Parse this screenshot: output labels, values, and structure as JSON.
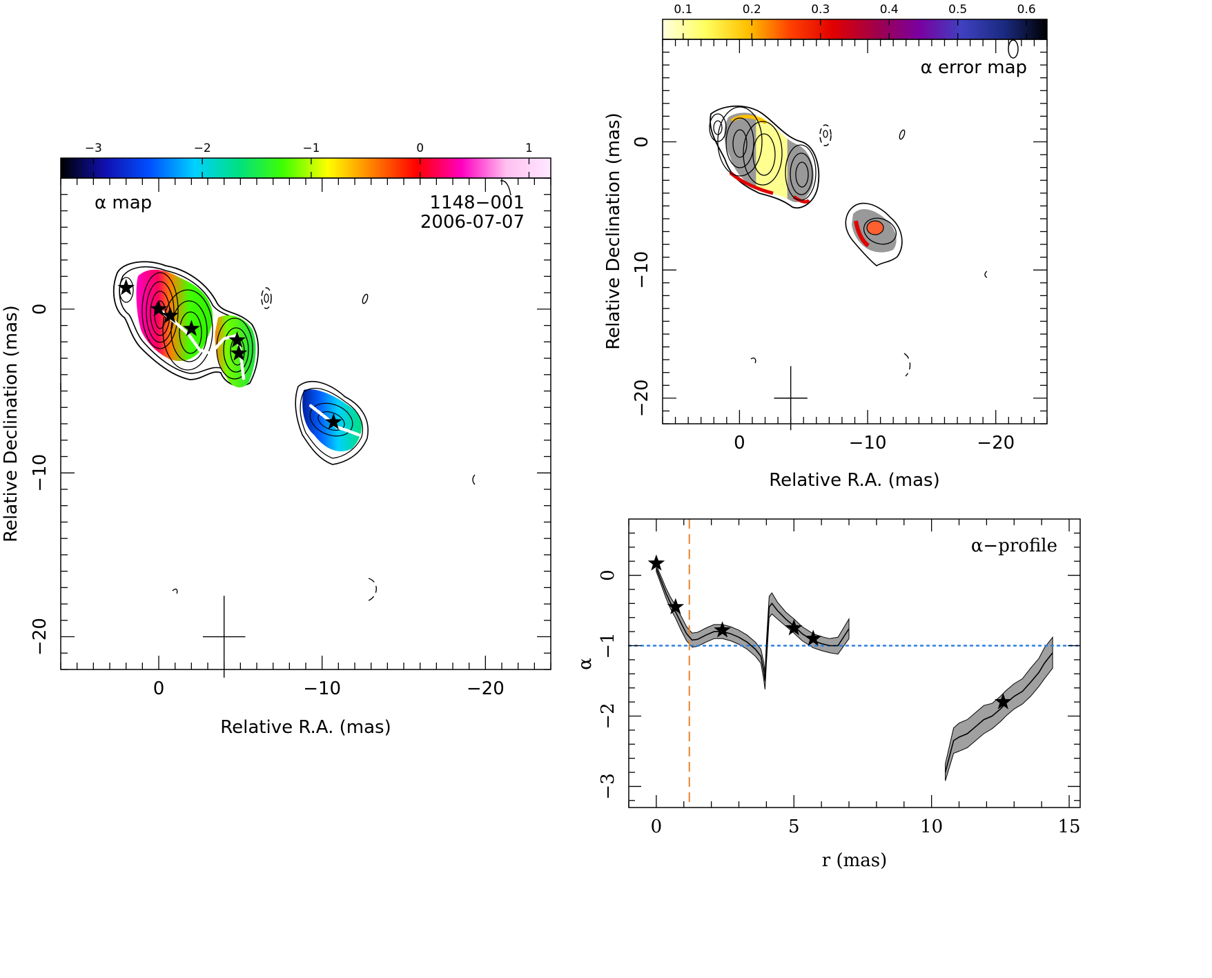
{
  "chart_data": [
    {
      "type": "heatmap",
      "title": "α map",
      "source": "1148−001",
      "epoch": "2006-07-07",
      "xlabel": "Relative R.A. (mas)",
      "ylabel": "Relative Declination (mas)",
      "xlim": [
        6,
        -24
      ],
      "ylim": [
        -22,
        8
      ],
      "xticks": [
        0,
        -10,
        -20
      ],
      "xtick_labels": [
        "0",
        "−10",
        "−20"
      ],
      "yticks": [
        0,
        -10,
        -20
      ],
      "ytick_labels": [
        "0",
        "−10",
        "−20"
      ],
      "colorbar": {
        "range": [
          -3.3,
          1.2
        ],
        "ticks": [
          -3,
          -2,
          -1,
          0,
          1
        ],
        "tick_labels": [
          "−3",
          "−2",
          "−1",
          "0",
          "1"
        ],
        "colors": [
          "#000000",
          "#1010b0",
          "#0050ff",
          "#00d0ff",
          "#00e080",
          "#40ff00",
          "#ffff00",
          "#ff8000",
          "#ff0000",
          "#ff00c0",
          "#ffc0f0",
          "#ffe8ff"
        ]
      },
      "core_markers": [
        {
          "x": 2.0,
          "y": 1.3
        },
        {
          "x": 0.0,
          "y": 0.0
        },
        {
          "x": -0.7,
          "y": -0.4
        },
        {
          "x": -2.0,
          "y": -1.2
        },
        {
          "x": -4.8,
          "y": -1.9
        },
        {
          "x": -4.9,
          "y": -2.7
        },
        {
          "x": -10.7,
          "y": -6.9
        }
      ],
      "ridge_line": [
        [
          [
            0.0,
            0.0
          ],
          [
            -1.0,
            -0.8
          ],
          [
            -1.8,
            -1.5
          ],
          [
            -2.5,
            -2.5
          ],
          [
            -3.2,
            -2.7
          ],
          [
            -4.0,
            -1.8
          ],
          [
            -4.8,
            -1.6
          ],
          [
            -5.0,
            -2.6
          ],
          [
            -5.2,
            -4.3
          ]
        ],
        [
          [
            -9.3,
            -5.9
          ],
          [
            -10.2,
            -6.6
          ],
          [
            -10.9,
            -7.2
          ],
          [
            -11.5,
            -7.4
          ],
          [
            -12.3,
            -7.7
          ]
        ]
      ],
      "beam": {
        "major": 2.5,
        "minor": 1.3
      }
    },
    {
      "type": "heatmap",
      "title": "α error map",
      "xlabel": "Relative R.A. (mas)",
      "ylabel": "Relative Declination (mas)",
      "xlim": [
        6,
        -24
      ],
      "ylim": [
        -22,
        8
      ],
      "xticks": [
        0,
        -10,
        -20
      ],
      "xtick_labels": [
        "0",
        "−10",
        "−20"
      ],
      "yticks": [
        0,
        -10,
        -20
      ],
      "ytick_labels": [
        "0",
        "−10",
        "−20"
      ],
      "colorbar": {
        "range": [
          0.07,
          0.63
        ],
        "ticks": [
          0.1,
          0.2,
          0.3,
          0.4,
          0.5,
          0.6
        ],
        "tick_labels": [
          "0.1",
          "0.2",
          "0.3",
          "0.4",
          "0.5",
          "0.6"
        ],
        "colors": [
          "#ffffe0",
          "#ffff60",
          "#ffc000",
          "#ff4000",
          "#e00000",
          "#a0004a",
          "#7a00a0",
          "#4040c0",
          "#1a2a80",
          "#000000"
        ]
      },
      "beam": {
        "major": 2.5,
        "minor": 1.3
      }
    },
    {
      "type": "line",
      "title": "α−profile",
      "xlabel": "r (mas)",
      "ylabel": "α",
      "xlim": [
        -1,
        15.4
      ],
      "ylim": [
        -3.3,
        0.8
      ],
      "xticks": [
        0,
        5,
        10,
        15
      ],
      "xtick_labels": [
        "0",
        "5",
        "10",
        "15"
      ],
      "yticks": [
        0,
        -1,
        -2,
        -3
      ],
      "ytick_labels": [
        "0",
        "−1",
        "−2",
        "−3"
      ],
      "reference_line": -1.0,
      "vertical_line": 1.2,
      "series": [
        {
          "x": [
            0.0,
            0.1,
            0.2,
            0.35,
            0.5,
            0.7,
            0.9,
            1.1,
            1.3,
            1.5,
            1.8,
            2.1,
            2.4,
            2.7,
            3.0,
            3.3,
            3.6,
            3.8,
            3.9,
            3.95,
            4.0,
            4.1,
            4.2,
            4.4,
            4.7,
            5.0,
            5.3,
            5.7,
            6.0,
            6.3,
            6.6,
            7.0
          ],
          "y": [
            0.1,
            0.0,
            -0.1,
            -0.25,
            -0.38,
            -0.52,
            -0.68,
            -0.83,
            -0.92,
            -0.91,
            -0.85,
            -0.8,
            -0.8,
            -0.83,
            -0.88,
            -0.95,
            -1.05,
            -1.15,
            -1.35,
            -1.5,
            -1.1,
            -0.45,
            -0.4,
            -0.5,
            -0.62,
            -0.72,
            -0.83,
            -0.93,
            -0.97,
            -1.0,
            -1.0,
            -0.76
          ],
          "err": [
            0.05,
            0.05,
            0.06,
            0.07,
            0.08,
            0.09,
            0.1,
            0.1,
            0.1,
            0.1,
            0.1,
            0.1,
            0.1,
            0.1,
            0.1,
            0.1,
            0.1,
            0.1,
            0.12,
            0.12,
            0.15,
            0.15,
            0.15,
            0.12,
            0.1,
            0.1,
            0.1,
            0.1,
            0.1,
            0.1,
            0.12,
            0.14
          ]
        },
        {
          "x": [
            10.5,
            10.8,
            11.0,
            11.3,
            11.6,
            11.9,
            12.2,
            12.5,
            12.7,
            13.0,
            13.3,
            13.6,
            13.9,
            14.1,
            14.4
          ],
          "y": [
            -2.8,
            -2.35,
            -2.3,
            -2.25,
            -2.15,
            -2.05,
            -2.0,
            -1.9,
            -1.82,
            -1.72,
            -1.65,
            -1.52,
            -1.38,
            -1.25,
            -1.1
          ],
          "err": [
            0.12,
            0.18,
            0.2,
            0.2,
            0.2,
            0.2,
            0.18,
            0.18,
            0.18,
            0.18,
            0.18,
            0.2,
            0.2,
            0.22,
            0.22
          ]
        }
      ],
      "markers": [
        {
          "x": 0.0,
          "y": 0.17
        },
        {
          "x": 0.7,
          "y": -0.45
        },
        {
          "x": 2.4,
          "y": -0.78
        },
        {
          "x": 5.0,
          "y": -0.75
        },
        {
          "x": 5.7,
          "y": -0.9
        },
        {
          "x": 12.6,
          "y": -1.8
        }
      ],
      "colors": {
        "reference_line": "#2b7fe0",
        "vertical_line": "#e8822a",
        "band": "#a0a0a0"
      }
    }
  ]
}
